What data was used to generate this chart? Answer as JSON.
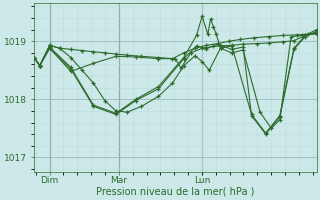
{
  "xlabel": "Pression niveau de la mer( hPa )",
  "ylim": [
    1016.75,
    1019.65
  ],
  "yticks": [
    1017,
    1018,
    1019
  ],
  "bg_color": "#cce8e8",
  "line_color": "#2d6b2d",
  "grid_color_major": "#99bbbb",
  "grid_color_minor": "#bbdddd",
  "xtick_labels": [
    "Dim",
    "Mar",
    "Lun"
  ],
  "xtick_positions": [
    0.055,
    0.3,
    0.595
  ],
  "vline_color": "#4a7060",
  "lines": [
    {
      "points": [
        [
          0.0,
          1018.72
        ],
        [
          0.02,
          1018.58
        ],
        [
          0.055,
          1018.93
        ],
        [
          0.09,
          1018.88
        ],
        [
          0.13,
          1018.86
        ],
        [
          0.17,
          1018.84
        ],
        [
          0.21,
          1018.82
        ],
        [
          0.25,
          1018.8
        ],
        [
          0.29,
          1018.78
        ],
        [
          0.33,
          1018.76
        ],
        [
          0.38,
          1018.74
        ],
        [
          0.44,
          1018.72
        ],
        [
          0.49,
          1018.7
        ],
        [
          0.53,
          1018.8
        ],
        [
          0.57,
          1018.88
        ],
        [
          0.61,
          1018.93
        ],
        [
          0.65,
          1018.96
        ],
        [
          0.69,
          1019.0
        ],
        [
          0.73,
          1019.03
        ],
        [
          0.78,
          1019.06
        ],
        [
          0.83,
          1019.08
        ],
        [
          0.88,
          1019.1
        ],
        [
          0.93,
          1019.11
        ],
        [
          0.97,
          1019.12
        ],
        [
          1.0,
          1019.13
        ]
      ]
    },
    {
      "points": [
        [
          0.0,
          1018.72
        ],
        [
          0.02,
          1018.58
        ],
        [
          0.055,
          1018.93
        ],
        [
          0.09,
          1018.88
        ],
        [
          0.13,
          1018.72
        ],
        [
          0.17,
          1018.5
        ],
        [
          0.21,
          1018.28
        ],
        [
          0.25,
          1017.98
        ],
        [
          0.29,
          1017.8
        ],
        [
          0.33,
          1017.78
        ],
        [
          0.38,
          1017.88
        ],
        [
          0.44,
          1018.05
        ],
        [
          0.49,
          1018.28
        ],
        [
          0.53,
          1018.58
        ],
        [
          0.57,
          1018.75
        ],
        [
          0.595,
          1018.65
        ],
        [
          0.62,
          1018.5
        ],
        [
          0.66,
          1018.88
        ],
        [
          0.7,
          1018.8
        ],
        [
          0.74,
          1018.85
        ],
        [
          0.8,
          1017.78
        ],
        [
          0.84,
          1017.5
        ],
        [
          0.87,
          1017.65
        ],
        [
          0.91,
          1019.08
        ],
        [
          0.95,
          1019.1
        ],
        [
          1.0,
          1019.13
        ]
      ]
    },
    {
      "points": [
        [
          0.0,
          1018.72
        ],
        [
          0.02,
          1018.58
        ],
        [
          0.055,
          1018.9
        ],
        [
          0.13,
          1018.55
        ],
        [
          0.21,
          1017.9
        ],
        [
          0.29,
          1017.76
        ],
        [
          0.36,
          1018.0
        ],
        [
          0.44,
          1018.22
        ],
        [
          0.53,
          1018.72
        ],
        [
          0.575,
          1019.1
        ],
        [
          0.595,
          1019.43
        ],
        [
          0.615,
          1019.12
        ],
        [
          0.625,
          1019.38
        ],
        [
          0.635,
          1019.25
        ],
        [
          0.645,
          1019.12
        ],
        [
          0.66,
          1018.88
        ],
        [
          0.7,
          1018.92
        ],
        [
          0.77,
          1017.74
        ],
        [
          0.82,
          1017.42
        ],
        [
          0.87,
          1017.72
        ],
        [
          0.92,
          1018.88
        ],
        [
          0.96,
          1019.1
        ],
        [
          1.0,
          1019.15
        ]
      ]
    },
    {
      "points": [
        [
          0.0,
          1018.72
        ],
        [
          0.02,
          1018.58
        ],
        [
          0.055,
          1018.88
        ],
        [
          0.13,
          1018.52
        ],
        [
          0.21,
          1017.88
        ],
        [
          0.29,
          1017.74
        ],
        [
          0.36,
          1017.98
        ],
        [
          0.44,
          1018.18
        ],
        [
          0.53,
          1018.7
        ],
        [
          0.575,
          1018.92
        ],
        [
          0.61,
          1018.87
        ],
        [
          0.65,
          1018.95
        ],
        [
          0.7,
          1018.86
        ],
        [
          0.74,
          1018.9
        ],
        [
          0.77,
          1017.72
        ],
        [
          0.82,
          1017.4
        ],
        [
          0.87,
          1017.7
        ],
        [
          0.92,
          1018.86
        ],
        [
          0.96,
          1019.08
        ],
        [
          1.0,
          1019.17
        ]
      ]
    },
    {
      "points": [
        [
          0.0,
          1018.72
        ],
        [
          0.02,
          1018.58
        ],
        [
          0.055,
          1018.88
        ],
        [
          0.13,
          1018.48
        ],
        [
          0.21,
          1018.62
        ],
        [
          0.29,
          1018.74
        ],
        [
          0.36,
          1018.73
        ],
        [
          0.44,
          1018.7
        ],
        [
          0.5,
          1018.7
        ],
        [
          0.52,
          1018.54
        ],
        [
          0.555,
          1018.8
        ],
        [
          0.595,
          1018.88
        ],
        [
          0.635,
          1018.91
        ],
        [
          0.66,
          1018.92
        ],
        [
          0.7,
          1018.93
        ],
        [
          0.74,
          1018.95
        ],
        [
          0.79,
          1018.96
        ],
        [
          0.83,
          1018.97
        ],
        [
          0.88,
          1018.99
        ],
        [
          0.92,
          1019.01
        ],
        [
          0.96,
          1019.1
        ],
        [
          1.0,
          1019.2
        ]
      ]
    }
  ]
}
